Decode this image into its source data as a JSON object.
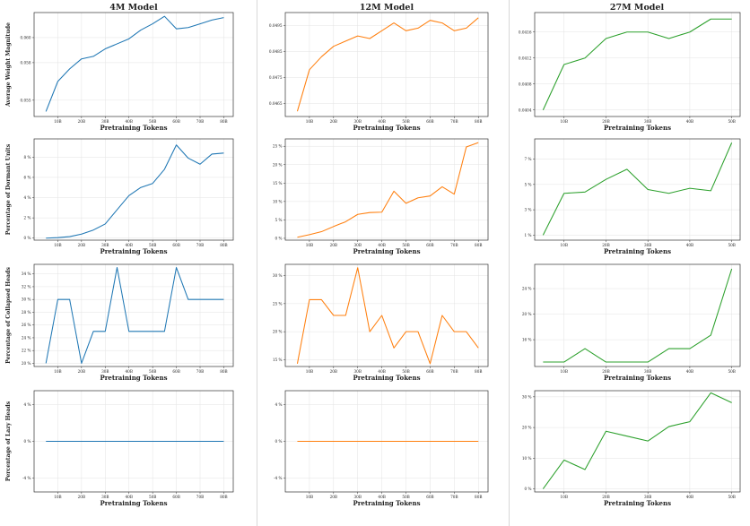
{
  "column_titles": [
    "4M Model",
    "12M Model",
    "27M Model"
  ],
  "row_ylabels": [
    "Average Weight Magnitude",
    "Percentage of Dormant Units",
    "Percentage of Collapsed Heads",
    "Percentage of Lazy Heads"
  ],
  "xlabel": "Pretraining Tokens",
  "colors": [
    "#1f77b4",
    "#ff7f0e",
    "#2ca02c"
  ],
  "chart_data": [
    {
      "id": "r0c0",
      "type": "line",
      "title": "4M Model",
      "xlabel": "Pretraining Tokens",
      "ylabel": "Average Weight Magnitude",
      "x": [
        5,
        10,
        15,
        20,
        25,
        30,
        35,
        40,
        45,
        50,
        55,
        60,
        65,
        70,
        75,
        80
      ],
      "xticks": [
        10,
        20,
        30,
        40,
        50,
        60,
        70,
        80
      ],
      "xticklabels": [
        "10B",
        "20B",
        "30B",
        "40B",
        "50B",
        "60B",
        "70B",
        "80B"
      ],
      "xlim": [
        0,
        84
      ],
      "y": [
        0.0541,
        0.0565,
        0.0575,
        0.0583,
        0.0585,
        0.0591,
        0.0595,
        0.0599,
        0.0606,
        0.0611,
        0.0617,
        0.0607,
        0.0608,
        0.0611,
        0.0614,
        0.0616
      ],
      "yticks": [
        0.055,
        0.058,
        0.06
      ],
      "yticklabels": [
        "0.055",
        "0.058",
        "0.060"
      ],
      "ylim": [
        0.0537,
        0.062
      ]
    },
    {
      "id": "r0c1",
      "type": "line",
      "title": "12M Model",
      "xlabel": "Pretraining Tokens",
      "ylabel": "",
      "x": [
        5,
        10,
        15,
        20,
        25,
        30,
        35,
        40,
        45,
        50,
        55,
        60,
        65,
        70,
        75,
        80
      ],
      "xticks": [
        10,
        20,
        30,
        40,
        50,
        60,
        70,
        80
      ],
      "xticklabels": [
        "10B",
        "20B",
        "30B",
        "40B",
        "50B",
        "60B",
        "70B",
        "80B"
      ],
      "xlim": [
        0,
        84
      ],
      "y": [
        0.0462,
        0.0478,
        0.0483,
        0.0487,
        0.0489,
        0.0491,
        0.049,
        0.0493,
        0.0496,
        0.0493,
        0.0494,
        0.0497,
        0.0496,
        0.0493,
        0.0494,
        0.0498
      ],
      "yticks": [
        0.0465,
        0.0475,
        0.0485,
        0.0495
      ],
      "yticklabels": [
        "0.0465",
        "0.0475",
        "0.0485",
        "0.0495"
      ],
      "ylim": [
        0.046,
        0.05
      ]
    },
    {
      "id": "r0c2",
      "type": "line",
      "title": "27M Model",
      "xlabel": "Pretraining Tokens",
      "ylabel": "",
      "x": [
        5,
        10,
        15,
        20,
        25,
        30,
        35,
        40,
        45,
        50
      ],
      "xticks": [
        10,
        20,
        30,
        40,
        50
      ],
      "xticklabels": [
        "10B",
        "20B",
        "30B",
        "40B",
        "50B"
      ],
      "xlim": [
        3,
        52
      ],
      "y": [
        0.0404,
        0.0411,
        0.0412,
        0.0415,
        0.0416,
        0.0416,
        0.0415,
        0.0416,
        0.0418,
        0.0418
      ],
      "yticks": [
        0.0404,
        0.0408,
        0.0412,
        0.0416
      ],
      "yticklabels": [
        "0.0404",
        "0.0408",
        "0.0412",
        "0.0416"
      ],
      "ylim": [
        0.0403,
        0.0419
      ]
    },
    {
      "id": "r1c0",
      "type": "line",
      "title": "",
      "xlabel": "Pretraining Tokens",
      "ylabel": "Percentage of Dormant Units",
      "x": [
        5,
        10,
        15,
        20,
        25,
        30,
        35,
        40,
        45,
        50,
        55,
        60,
        65,
        70,
        75,
        80
      ],
      "xticks": [
        10,
        20,
        30,
        40,
        50,
        60,
        70,
        80
      ],
      "xticklabels": [
        "10B",
        "20B",
        "30B",
        "40B",
        "50B",
        "60B",
        "70B",
        "80B"
      ],
      "xlim": [
        0,
        84
      ],
      "y": [
        0,
        0.05,
        0.15,
        0.4,
        0.8,
        1.4,
        2.8,
        4.2,
        5.0,
        5.4,
        6.8,
        9.2,
        7.9,
        7.3,
        8.3,
        8.4
      ],
      "yticks": [
        0,
        2,
        4,
        6,
        8
      ],
      "yticklabels": [
        "0 %",
        "2 %",
        "4 %",
        "6 %",
        "8 %"
      ],
      "ylim": [
        -0.2,
        9.8
      ]
    },
    {
      "id": "r1c1",
      "type": "line",
      "title": "",
      "xlabel": "Pretraining Tokens",
      "ylabel": "",
      "x": [
        5,
        10,
        15,
        20,
        25,
        30,
        35,
        40,
        45,
        50,
        55,
        60,
        65,
        70,
        75,
        80
      ],
      "xticks": [
        10,
        20,
        30,
        40,
        50,
        60,
        70,
        80
      ],
      "xticklabels": [
        "10B",
        "20B",
        "30B",
        "40B",
        "50B",
        "60B",
        "70B",
        "80B"
      ],
      "xlim": [
        0,
        84
      ],
      "y": [
        0.3,
        1.0,
        1.8,
        3.2,
        4.5,
        6.5,
        7.0,
        7.1,
        12.8,
        9.5,
        11.0,
        11.5,
        14.0,
        12.0,
        24.8,
        26.0
      ],
      "yticks": [
        0,
        5,
        10,
        15,
        20,
        25
      ],
      "yticklabels": [
        "0 %",
        "5 %",
        "10 %",
        "15 %",
        "20 %",
        "25 %"
      ],
      "ylim": [
        -0.5,
        27
      ]
    },
    {
      "id": "r1c2",
      "type": "line",
      "title": "",
      "xlabel": "Pretraining Tokens",
      "ylabel": "",
      "x": [
        5,
        10,
        15,
        20,
        25,
        30,
        35,
        40,
        45,
        50
      ],
      "xticks": [
        10,
        20,
        30,
        40,
        50
      ],
      "xticklabels": [
        "10B",
        "20B",
        "30B",
        "40B",
        "50B"
      ],
      "xlim": [
        3,
        52
      ],
      "y": [
        1.0,
        4.3,
        4.4,
        5.4,
        6.2,
        4.6,
        4.3,
        4.7,
        4.5,
        8.3
      ],
      "yticks": [
        1,
        3,
        5,
        7
      ],
      "yticklabels": [
        "1 %",
        "3 %",
        "5 %",
        "7 %"
      ],
      "ylim": [
        0.6,
        8.6
      ]
    },
    {
      "id": "r2c0",
      "type": "line",
      "title": "",
      "xlabel": "Pretraining Tokens",
      "ylabel": "Percentage of Collapsed Heads",
      "x": [
        5,
        10,
        15,
        20,
        25,
        30,
        35,
        40,
        45,
        50,
        55,
        60,
        65,
        70,
        75,
        80
      ],
      "xticks": [
        10,
        20,
        30,
        40,
        50,
        60,
        70,
        80
      ],
      "xticklabels": [
        "10B",
        "20B",
        "30B",
        "40B",
        "50B",
        "60B",
        "70B",
        "80B"
      ],
      "xlim": [
        0,
        84
      ],
      "y": [
        20,
        30,
        30,
        20,
        25,
        25,
        35,
        25,
        25,
        25,
        25,
        35,
        30,
        30,
        30,
        30
      ],
      "yticks": [
        20,
        22,
        24,
        26,
        28,
        30,
        32,
        34
      ],
      "yticklabels": [
        "20 %",
        "22 %",
        "24 %",
        "26 %",
        "28 %",
        "30 %",
        "32 %",
        "34 %"
      ],
      "ylim": [
        19.5,
        35.5
      ]
    },
    {
      "id": "r2c1",
      "type": "line",
      "title": "",
      "xlabel": "Pretraining Tokens",
      "ylabel": "",
      "x": [
        5,
        10,
        15,
        20,
        25,
        30,
        35,
        40,
        45,
        50,
        55,
        60,
        65,
        70,
        75,
        80
      ],
      "xticks": [
        10,
        20,
        30,
        40,
        50,
        60,
        70,
        80
      ],
      "xticklabels": [
        "10B",
        "20B",
        "30B",
        "40B",
        "50B",
        "60B",
        "70B",
        "80B"
      ],
      "xlim": [
        0,
        84
      ],
      "y": [
        14.3,
        25.7,
        25.7,
        22.9,
        22.9,
        31.4,
        20.0,
        22.9,
        17.1,
        20.0,
        20.0,
        14.3,
        22.9,
        20.0,
        20.0,
        17.1
      ],
      "yticks": [
        15,
        20,
        25,
        30
      ],
      "yticklabels": [
        "15 %",
        "20 %",
        "25 %",
        "30 %"
      ],
      "ylim": [
        13.8,
        32
      ]
    },
    {
      "id": "r2c2",
      "type": "line",
      "title": "",
      "xlabel": "Pretraining Tokens",
      "ylabel": "",
      "x": [
        5,
        10,
        15,
        20,
        25,
        30,
        35,
        40,
        45,
        50
      ],
      "xticks": [
        10,
        20,
        30,
        40,
        50
      ],
      "xticklabels": [
        "10B",
        "20B",
        "30B",
        "40B",
        "50B"
      ],
      "xlim": [
        3,
        52
      ],
      "y": [
        12.5,
        12.5,
        14.6,
        12.5,
        12.5,
        12.5,
        14.6,
        14.6,
        16.7,
        27.1
      ],
      "yticks": [
        16,
        20,
        24
      ],
      "yticklabels": [
        "16 %",
        "20 %",
        "24 %"
      ],
      "ylim": [
        11.8,
        27.8
      ]
    },
    {
      "id": "r3c0",
      "type": "line",
      "title": "",
      "xlabel": "Pretraining Tokens",
      "ylabel": "Percentage of Lazy Heads",
      "x": [
        5,
        10,
        15,
        20,
        25,
        30,
        35,
        40,
        45,
        50,
        55,
        60,
        65,
        70,
        75,
        80
      ],
      "xticks": [
        10,
        20,
        30,
        40,
        50,
        60,
        70,
        80
      ],
      "xticklabels": [
        "10B",
        "20B",
        "30B",
        "40B",
        "50B",
        "60B",
        "70B",
        "80B"
      ],
      "xlim": [
        0,
        84
      ],
      "y": [
        0,
        0,
        0,
        0,
        0,
        0,
        0,
        0,
        0,
        0,
        0,
        0,
        0,
        0,
        0,
        0
      ],
      "yticks": [
        -4,
        0,
        4
      ],
      "yticklabels": [
        "-4 %",
        "0 %",
        "4 %"
      ],
      "ylim": [
        -5.5,
        5.5
      ]
    },
    {
      "id": "r3c1",
      "type": "line",
      "title": "",
      "xlabel": "Pretraining Tokens",
      "ylabel": "",
      "x": [
        5,
        10,
        15,
        20,
        25,
        30,
        35,
        40,
        45,
        50,
        55,
        60,
        65,
        70,
        75,
        80
      ],
      "xticks": [
        10,
        20,
        30,
        40,
        50,
        60,
        70,
        80
      ],
      "xticklabels": [
        "10B",
        "20B",
        "30B",
        "40B",
        "50B",
        "60B",
        "70B",
        "80B"
      ],
      "xlim": [
        0,
        84
      ],
      "y": [
        0,
        0,
        0,
        0,
        0,
        0,
        0,
        0,
        0,
        0,
        0,
        0,
        0,
        0,
        0,
        0
      ],
      "yticks": [
        -4,
        0,
        4
      ],
      "yticklabels": [
        "-4 %",
        "0 %",
        "4 %"
      ],
      "ylim": [
        -5.5,
        5.5
      ]
    },
    {
      "id": "r3c2",
      "type": "line",
      "title": "",
      "xlabel": "Pretraining Tokens",
      "ylabel": "",
      "x": [
        5,
        10,
        15,
        20,
        25,
        30,
        35,
        40,
        45,
        50
      ],
      "xticks": [
        10,
        20,
        30,
        40,
        50
      ],
      "xticklabels": [
        "10B",
        "20B",
        "30B",
        "40B",
        "50B"
      ],
      "xlim": [
        3,
        52
      ],
      "y": [
        0,
        9.4,
        6.3,
        18.8,
        17.2,
        15.6,
        20.3,
        21.9,
        31.3,
        28.1
      ],
      "yticks": [
        0,
        10,
        20,
        30
      ],
      "yticklabels": [
        "0 %",
        "10 %",
        "20 %",
        "30 %"
      ],
      "ylim": [
        -1,
        32
      ]
    }
  ]
}
